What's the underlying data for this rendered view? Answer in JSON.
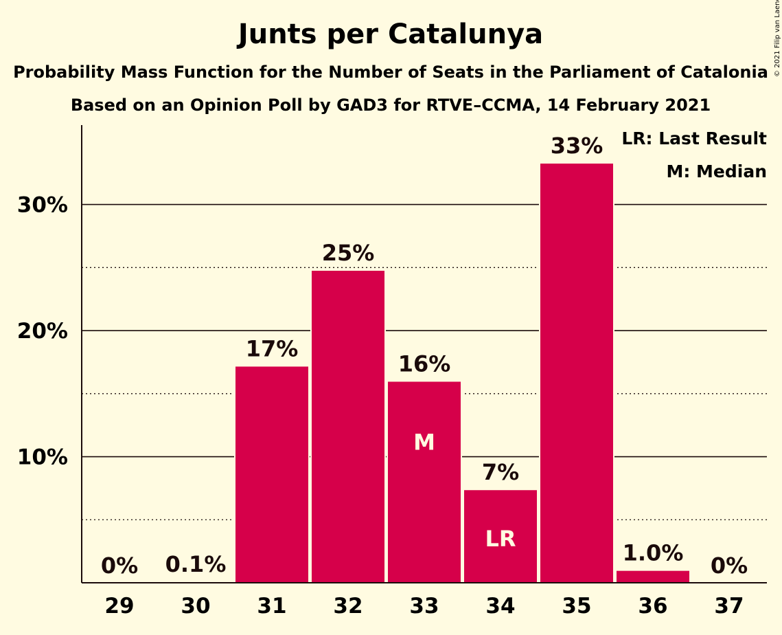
{
  "copyright": "© 2021 Filip van Laenen",
  "chart_data": {
    "type": "bar",
    "title": "Junts per Catalunya",
    "subtitle": "Probability Mass Function for the Number of Seats in the Parliament of Catalonia",
    "subtitle2": "Based on an Opinion Poll by GAD3 for RTVE–CCMA, 14 February 2021",
    "categories": [
      "29",
      "30",
      "31",
      "32",
      "33",
      "34",
      "35",
      "36",
      "37"
    ],
    "values": [
      0,
      0.1,
      17.2,
      24.8,
      16.0,
      7.4,
      33.3,
      1.0,
      0
    ],
    "value_labels": [
      "0%",
      "0.1%",
      "17%",
      "25%",
      "16%",
      "7%",
      "33%",
      "1.0%",
      "0%"
    ],
    "bar_markers": [
      "",
      "",
      "",
      "",
      "M",
      "LR",
      "",
      "",
      ""
    ],
    "y_ticks": [
      10,
      20,
      30
    ],
    "y_tick_labels": [
      "10%",
      "20%",
      "30%"
    ],
    "y_minor_ticks": [
      5,
      15,
      25
    ],
    "ylim": [
      0,
      36.3
    ],
    "legend": [
      "LR: Last Result",
      "M: Median"
    ],
    "legend_position": "top-right",
    "bar_color": "#d6004a"
  }
}
